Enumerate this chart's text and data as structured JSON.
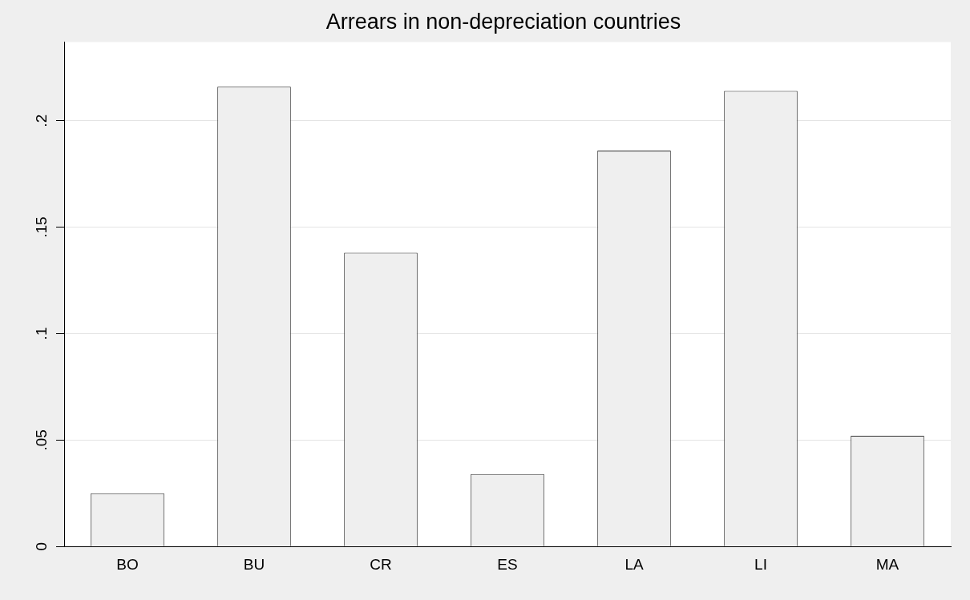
{
  "chart_data": {
    "type": "bar",
    "title": "Arrears in non-depreciation countries",
    "categories": [
      "BO",
      "BU",
      "CR",
      "ES",
      "LA",
      "LI",
      "MA"
    ],
    "values": [
      0.025,
      0.216,
      0.138,
      0.034,
      0.186,
      0.214,
      0.052
    ],
    "color": "#efefef",
    "ylim": [
      0,
      0.237
    ],
    "yticks": [
      0,
      {
        "value": 0.05,
        "label": ".05"
      },
      {
        "value": 0.1,
        "label": ".1"
      },
      {
        "value": 0.15,
        "label": ".15"
      },
      {
        "value": 0.2,
        "label": ".2"
      }
    ],
    "grid": "y",
    "legend": false
  }
}
